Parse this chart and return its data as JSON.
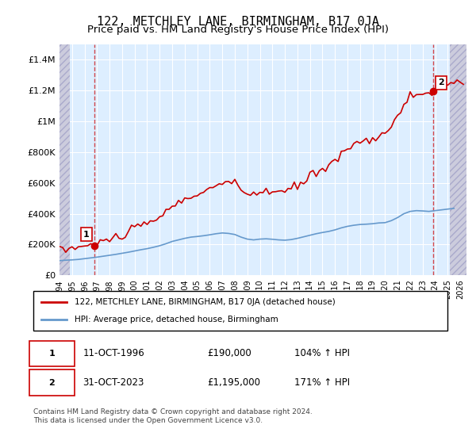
{
  "title": "122, METCHLEY LANE, BIRMINGHAM, B17 0JA",
  "subtitle": "Price paid vs. HM Land Registry's House Price Index (HPI)",
  "title_fontsize": 11,
  "subtitle_fontsize": 9.5,
  "xlim": [
    1994.0,
    2026.5
  ],
  "ylim": [
    0,
    1500000
  ],
  "yticks": [
    0,
    200000,
    400000,
    600000,
    800000,
    1000000,
    1200000,
    1400000
  ],
  "ytick_labels": [
    "£0",
    "£200K",
    "£400K",
    "£600K",
    "£800K",
    "£1M",
    "£1.2M",
    "£1.4M"
  ],
  "xticks": [
    1994,
    1995,
    1996,
    1997,
    1998,
    1999,
    2000,
    2001,
    2002,
    2003,
    2004,
    2005,
    2006,
    2007,
    2008,
    2009,
    2010,
    2011,
    2012,
    2013,
    2014,
    2015,
    2016,
    2017,
    2018,
    2019,
    2020,
    2021,
    2022,
    2023,
    2024,
    2025,
    2026
  ],
  "red_line_color": "#cc0000",
  "blue_line_color": "#6699cc",
  "point1_date": "11-OCT-1996",
  "point1_price": 190000,
  "point1_hpi": "104%",
  "point1_year": 1996.78,
  "point2_date": "31-OCT-2023",
  "point2_price": 1195000,
  "point2_hpi": "171%",
  "point2_year": 2023.83,
  "legend_label_red": "122, METCHLEY LANE, BIRMINGHAM, B17 0JA (detached house)",
  "legend_label_blue": "HPI: Average price, detached house, Birmingham",
  "footer": "Contains HM Land Registry data © Crown copyright and database right 2024.\nThis data is licensed under the Open Government Licence v3.0.",
  "background_color": "#ffffff",
  "plot_bg_color": "#ddeeff",
  "hatch_color": "#ccccdd",
  "grid_color": "#ffffff"
}
